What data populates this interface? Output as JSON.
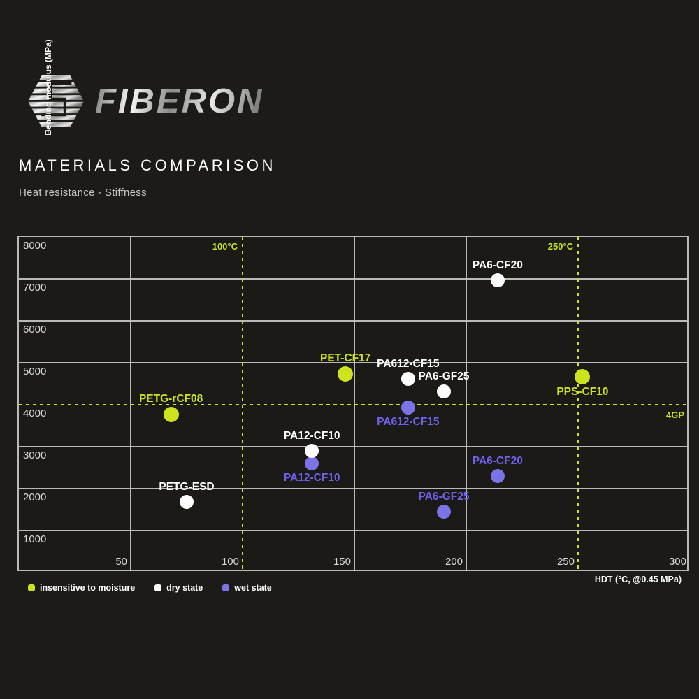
{
  "header": {
    "brand": "FIBERON",
    "title": "MATERIALS COMPARISON",
    "subtitle": "Heat resistance - Stiffness"
  },
  "colors": {
    "background": "#1c1b17",
    "grid": "#b9b9b9",
    "accent_yellow": "#cde31e",
    "dot_purple": "#7b74e8",
    "text_purple": "#6d62ec",
    "dot_white": "#ffffff",
    "tick_text": "#d9d9d9"
  },
  "chart_data": {
    "type": "scatter",
    "title": "Heat resistance - Stiffness",
    "xlabel": "HDT (°C, @0.45 MPa)",
    "ylabel": "Bending modulus (MPa)",
    "xlim": [
      0,
      300
    ],
    "ylim": [
      0,
      8000
    ],
    "x_ticks": [
      "50",
      "100",
      "150",
      "200",
      "250",
      "300"
    ],
    "y_ticks": [
      "1000",
      "2000",
      "3000",
      "4000",
      "5000",
      "6000",
      "7000",
      "8000"
    ],
    "grid": true,
    "reference_lines": {
      "vertical": [
        {
          "x": 100,
          "label": "100°C"
        },
        {
          "x": 250,
          "label": "250°C"
        }
      ],
      "horizontal": [
        {
          "y": 4000,
          "label": "4GP"
        }
      ]
    },
    "legend": [
      {
        "series": "insensitive",
        "label": "insensitive to moisture",
        "color": "#cde31e"
      },
      {
        "series": "dry",
        "label": "dry state",
        "color": "#ffffff"
      },
      {
        "series": "wet",
        "label": "wet state",
        "color": "#7b74e8"
      }
    ],
    "points": [
      {
        "name": "PA6-CF20",
        "series": "dry",
        "x": 214,
        "y": 6970,
        "label_pos": "above"
      },
      {
        "name": "PET-CF17",
        "series": "insensitive",
        "x": 146,
        "y": 4740,
        "label_pos": "above"
      },
      {
        "name": "PA612-CF15",
        "series": "dry",
        "x": 174,
        "y": 4610,
        "label_pos": "above"
      },
      {
        "name": "PA6-GF25",
        "series": "dry",
        "x": 190,
        "y": 4320,
        "label_pos": "above"
      },
      {
        "name": "PPS-CF10",
        "series": "insensitive",
        "x": 252,
        "y": 4660,
        "label_pos": "below"
      },
      {
        "name": "PETG-rCF08",
        "series": "insensitive",
        "x": 68,
        "y": 3760,
        "label_pos": "above"
      },
      {
        "name": "PA612-CF15",
        "series": "wet",
        "x": 174,
        "y": 3930,
        "label_pos": "below"
      },
      {
        "name": "PA12-CF10",
        "series": "wet",
        "x": 131,
        "y": 2600,
        "label_pos": "below"
      },
      {
        "name": "PA12-CF10",
        "series": "dry",
        "x": 131,
        "y": 2900,
        "label_pos": "above"
      },
      {
        "name": "PA6-CF20",
        "series": "wet",
        "x": 214,
        "y": 2300,
        "label_pos": "above"
      },
      {
        "name": "PETG-ESD",
        "series": "dry",
        "x": 75,
        "y": 1680,
        "label_pos": "above"
      },
      {
        "name": "PA6-GF25",
        "series": "wet",
        "x": 190,
        "y": 1450,
        "label_pos": "above"
      }
    ]
  }
}
